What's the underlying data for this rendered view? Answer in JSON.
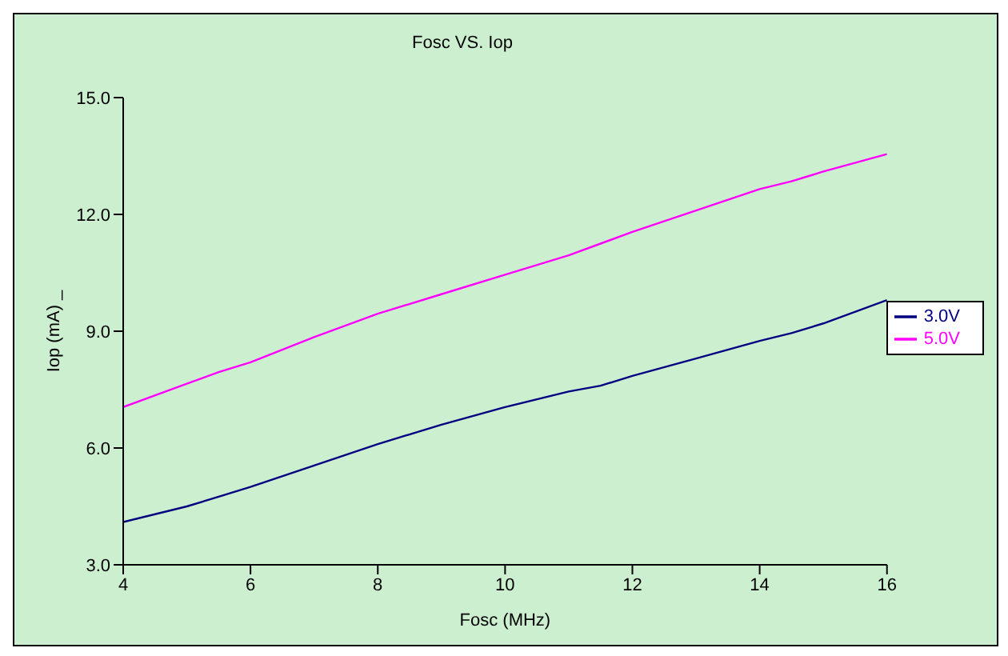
{
  "chart_data": {
    "type": "line",
    "title": "Fosc VS. Iop",
    "xlabel": "Fosc (MHz)",
    "ylabel": "Iop (mA) _",
    "x": [
      4,
      5,
      5.5,
      6,
      7,
      8,
      9,
      10,
      11,
      11.5,
      12,
      13,
      14,
      14.5,
      15,
      16
    ],
    "series": [
      {
        "name": "3.0V",
        "color": "#000080",
        "values": [
          4.1,
          4.5,
          4.75,
          5.0,
          5.55,
          6.1,
          6.6,
          7.05,
          7.45,
          7.6,
          7.85,
          8.3,
          8.75,
          8.95,
          9.2,
          9.8
        ]
      },
      {
        "name": "5.0V",
        "color": "#ff00ff",
        "values": [
          7.05,
          7.65,
          7.95,
          8.2,
          8.85,
          9.45,
          9.95,
          10.45,
          10.95,
          11.25,
          11.55,
          12.1,
          12.65,
          12.85,
          13.1,
          13.55
        ]
      }
    ],
    "xlim": [
      4,
      16
    ],
    "xticks": [
      4,
      6,
      8,
      10,
      12,
      14,
      16
    ],
    "ylim": [
      3,
      15
    ],
    "yticks": [
      {
        "value": 3,
        "label": "3.0"
      },
      {
        "value": 6,
        "label": "6.0"
      },
      {
        "value": 9,
        "label": "9.0"
      },
      {
        "value": 12,
        "label": "12.0"
      },
      {
        "value": 15,
        "label": "15.0"
      }
    ],
    "grid": false,
    "legend": "right",
    "marker": "none",
    "line_style": "solid"
  }
}
